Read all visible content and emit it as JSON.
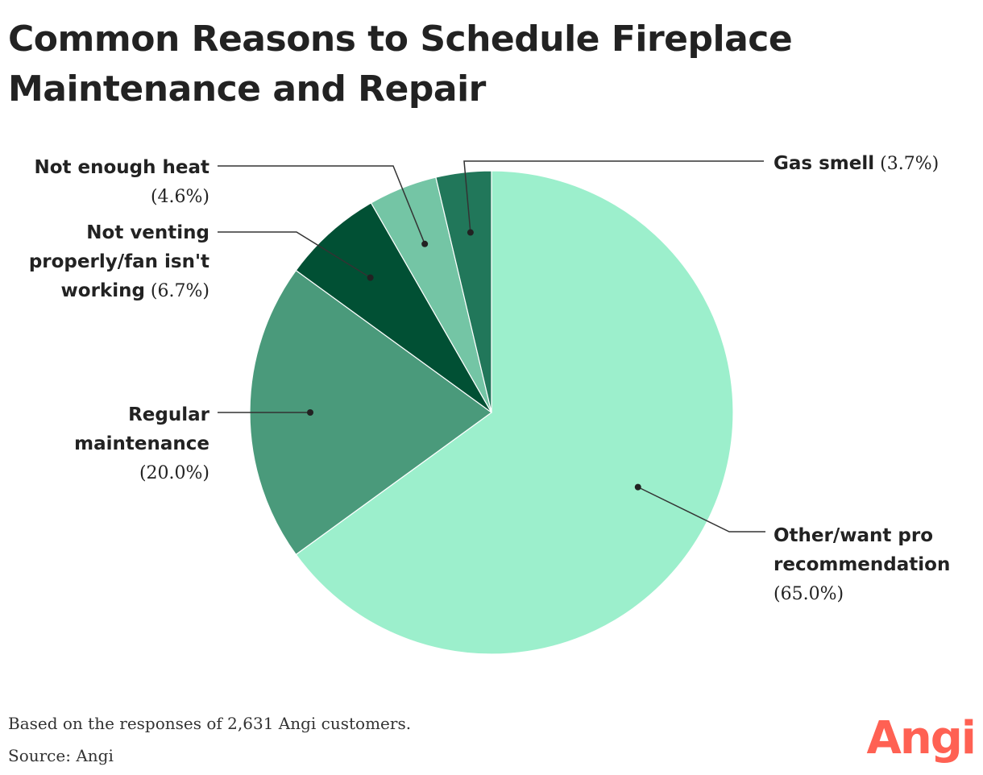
{
  "title_lines": [
    "Common Reasons to Schedule Fireplace",
    "Maintenance and Repair"
  ],
  "footnote": "Based on the responses of 2,631 Angi customers.",
  "source": "Source: Angi",
  "brand": {
    "name": "Angi",
    "color": "#ff6153"
  },
  "chart_data": {
    "type": "pie",
    "title": "Common Reasons to Schedule Fireplace Maintenance and Repair",
    "slices": [
      {
        "label_lines": [
          "Other/want pro",
          "recommendation"
        ],
        "pct_label": "(65.0%)",
        "value": 65.0,
        "color": "#9cefcc"
      },
      {
        "label_lines": [
          "Regular",
          "maintenance"
        ],
        "pct_label": "(20.0%)",
        "value": 20.0,
        "color": "#4a9a7b"
      },
      {
        "label_lines": [
          "Not venting",
          "properly/fan isn't",
          "working"
        ],
        "pct_label": "(6.7%)",
        "value": 6.7,
        "color": "#015034"
      },
      {
        "label_lines": [
          "Not enough heat"
        ],
        "pct_label": "(4.6%)",
        "value": 4.6,
        "color": "#74c5a5"
      },
      {
        "label_lines": [
          "Gas smell"
        ],
        "pct_label": "(3.7%)",
        "value": 3.7,
        "color": "#21775a"
      }
    ]
  }
}
